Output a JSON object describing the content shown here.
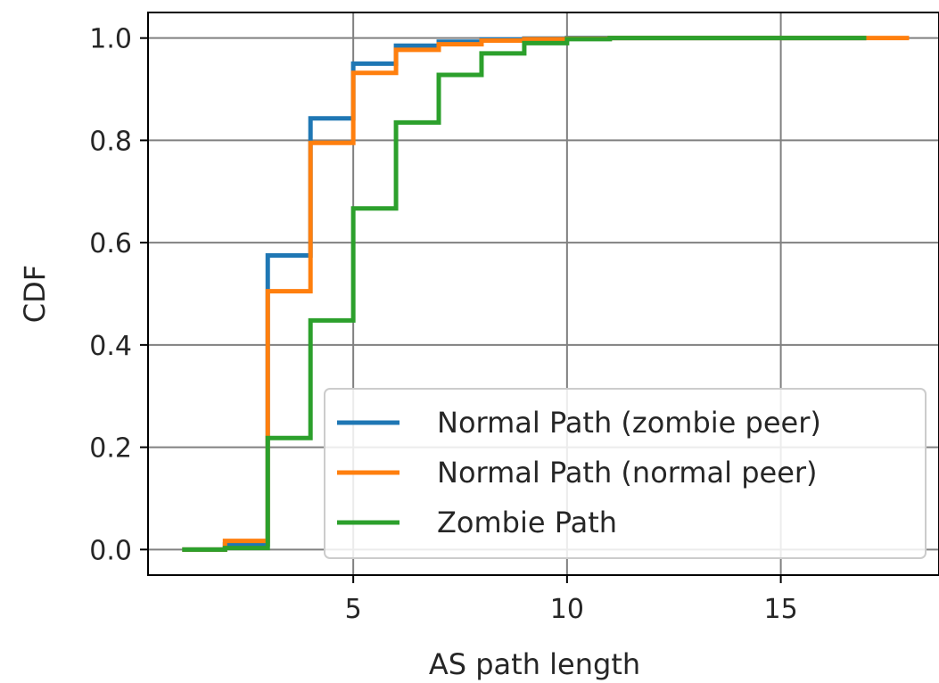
{
  "chart_data": {
    "type": "line",
    "step": "post",
    "title": "",
    "xlabel": "AS path length",
    "ylabel": "CDF",
    "xlim": [
      0.2,
      18.7
    ],
    "ylim": [
      -0.05,
      1.05
    ],
    "xticks": [
      5,
      10,
      15
    ],
    "yticks": [
      0.0,
      0.2,
      0.4,
      0.6,
      0.8,
      1.0
    ],
    "xtick_labels": [
      "5",
      "10",
      "15"
    ],
    "ytick_labels": [
      "0.0",
      "0.2",
      "0.4",
      "0.6",
      "0.8",
      "1.0"
    ],
    "grid": true,
    "legend_position": "lower right",
    "series": [
      {
        "name": "Normal Path (zombie peer)",
        "color": "#1f77b4",
        "x": [
          1,
          2,
          3,
          4,
          5,
          6,
          7,
          8,
          9,
          10,
          11,
          17
        ],
        "y": [
          0.0,
          0.01,
          0.575,
          0.843,
          0.95,
          0.985,
          0.993,
          0.997,
          0.999,
          1.0,
          1.0,
          1.0
        ]
      },
      {
        "name": "Normal Path (normal peer)",
        "color": "#ff7f0e",
        "x": [
          1,
          2,
          3,
          4,
          5,
          6,
          7,
          8,
          9,
          10,
          11,
          18
        ],
        "y": [
          0.0,
          0.017,
          0.505,
          0.795,
          0.932,
          0.977,
          0.988,
          0.995,
          0.998,
          0.999,
          1.0,
          1.0
        ]
      },
      {
        "name": "Zombie Path",
        "color": "#2ca02c",
        "x": [
          1,
          2,
          3,
          4,
          5,
          6,
          7,
          8,
          9,
          10,
          11,
          17
        ],
        "y": [
          0.0,
          0.003,
          0.218,
          0.448,
          0.667,
          0.835,
          0.928,
          0.97,
          0.99,
          0.998,
          1.0,
          1.0
        ]
      }
    ]
  }
}
